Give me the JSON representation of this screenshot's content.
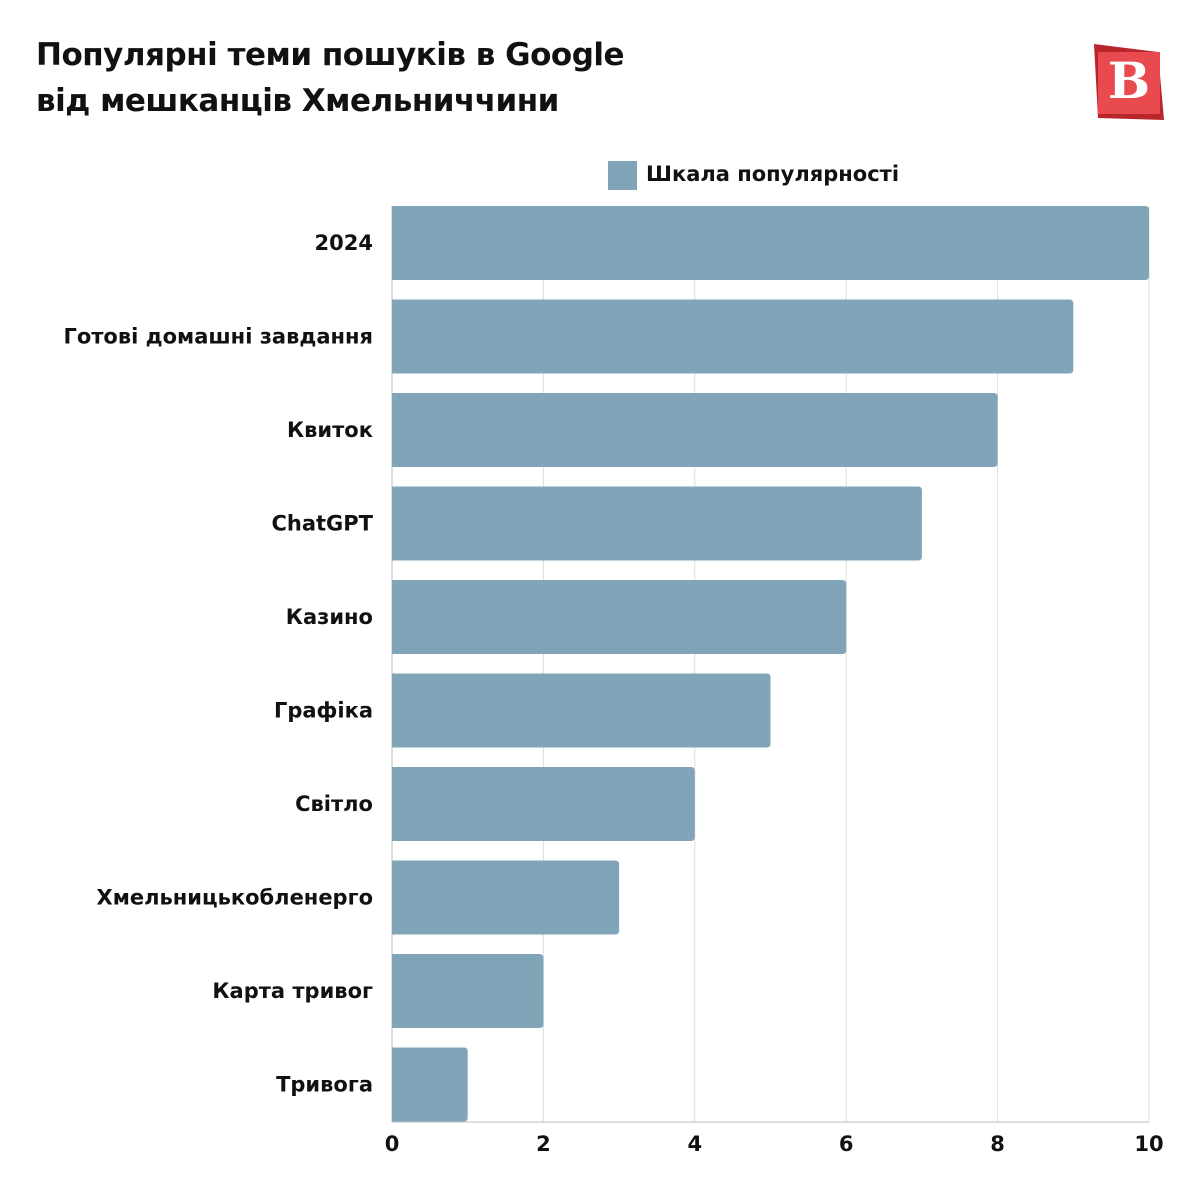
{
  "chart_data": {
    "type": "bar",
    "orientation": "horizontal",
    "title": "Популярні теми пошуків в Google від мешканців Хмельниччини",
    "logo": "B",
    "categories": [
      "2024",
      "Готові домашні завдання",
      "Квиток",
      "ChatGPT",
      "Казино",
      "Графіка",
      "Світло",
      "Хмельницькобленерго",
      "Карта тривог",
      "Тривога"
    ],
    "series": [
      {
        "name": "Шкала популярності",
        "color": "#81a5b8",
        "values": [
          10,
          9,
          8,
          7,
          6,
          5,
          4,
          3,
          2,
          1
        ]
      }
    ],
    "xlim": [
      0,
      10
    ],
    "xticks": [
      0,
      2,
      4,
      6,
      8,
      10
    ],
    "grid": true,
    "legend": "top"
  }
}
